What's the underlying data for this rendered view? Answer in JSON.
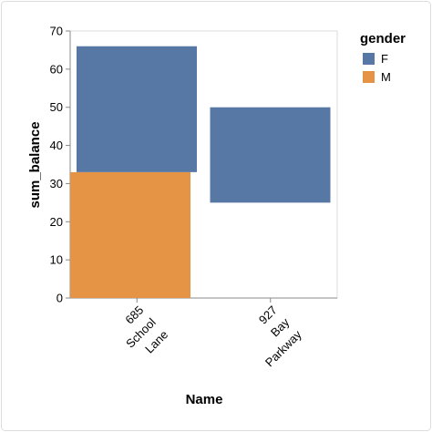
{
  "chart_data": {
    "type": "bar",
    "x_label": "Name",
    "y_label": "sum_balance",
    "categories": [
      "685 School Lane",
      "927 Bay Parkway"
    ],
    "series": [
      {
        "name": "F",
        "color": "#5778a4",
        "values": [
          [
            33,
            66
          ],
          [
            25,
            50
          ]
        ]
      },
      {
        "name": "M",
        "color": "#e49444",
        "values": [
          [
            0,
            33
          ],
          null
        ]
      }
    ],
    "legend_title": "gender",
    "ylim": [
      0,
      70
    ],
    "yticks": [
      0,
      10,
      20,
      30,
      40,
      50,
      60,
      70
    ],
    "grid": false
  }
}
